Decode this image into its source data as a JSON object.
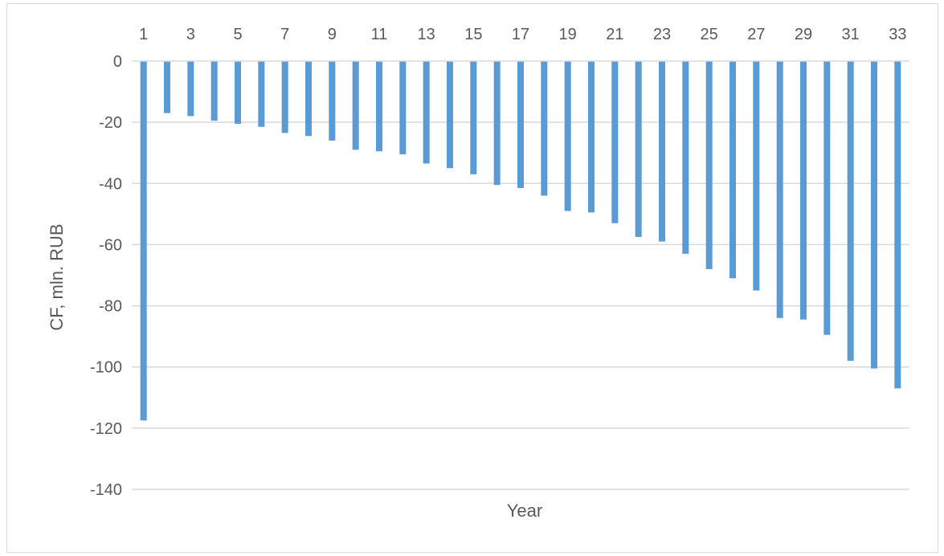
{
  "chart_data": {
    "type": "bar",
    "xlabel": "Year",
    "ylabel": "CF, mln. RUB",
    "ylim": [
      -140,
      0
    ],
    "yticks": [
      0,
      -20,
      -40,
      -60,
      -80,
      -100,
      -120,
      -140
    ],
    "x_axis_position": "top",
    "x_tick_labels": [
      "1",
      "3",
      "5",
      "7",
      "9",
      "11",
      "13",
      "15",
      "17",
      "19",
      "21",
      "23",
      "25",
      "27",
      "29",
      "31",
      "33"
    ],
    "categories": [
      1,
      2,
      3,
      4,
      5,
      6,
      7,
      8,
      9,
      10,
      11,
      12,
      13,
      14,
      15,
      16,
      17,
      18,
      19,
      20,
      21,
      22,
      23,
      24,
      25,
      26,
      27,
      28,
      29,
      30,
      31,
      32,
      33
    ],
    "values": [
      -117.5,
      -17,
      -18,
      -19.5,
      -20.5,
      -21.5,
      -23.5,
      -24.5,
      -26,
      -29,
      -29.5,
      -30.5,
      -33.5,
      -35,
      -37,
      -40.5,
      -41.5,
      -44,
      -49,
      -49.5,
      -53,
      -57.5,
      -59,
      -63,
      -68,
      -71,
      -75,
      -84,
      -84.5,
      -89.5,
      -98,
      -100.5,
      -107
    ],
    "grid": true,
    "colors": {
      "bar": "#5b9bd5",
      "grid": "#d9d9d9",
      "text": "#595959"
    }
  }
}
